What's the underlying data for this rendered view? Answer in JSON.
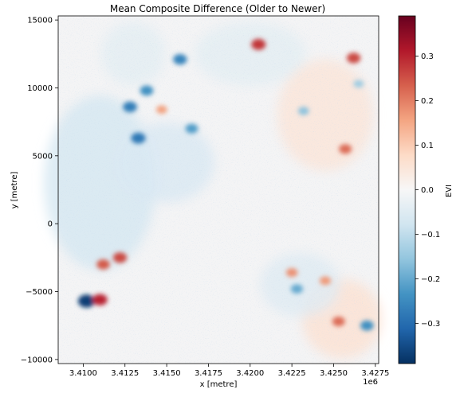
{
  "chart_data": {
    "type": "heatmap",
    "title": "Mean Composite Difference (Older to Newer)",
    "xlabel": "x [metre]",
    "ylabel": "y [metre]",
    "x_offset_label": "1e6",
    "xlim": [
      3.4085,
      3.4277
    ],
    "ylim": [
      -10300,
      15300
    ],
    "x_ticks": [
      "3.4100",
      "3.4125",
      "3.4150",
      "3.4175",
      "3.4200",
      "3.4225",
      "3.4250",
      "3.4275"
    ],
    "x_tick_values": [
      3.41,
      3.4125,
      3.415,
      3.4175,
      3.42,
      3.4225,
      3.425,
      3.4275
    ],
    "y_ticks": [
      "15000",
      "10000",
      "5000",
      "0",
      "−5000",
      "−10000"
    ],
    "y_tick_values": [
      15000,
      10000,
      5000,
      0,
      -5000,
      -10000
    ],
    "colorbar": {
      "label": "EVI",
      "range": [
        -0.39,
        0.39
      ],
      "colormap": "RdBu_r",
      "ticks": [
        "0.3",
        "0.2",
        "0.1",
        "0.0",
        "−0.1",
        "−0.2",
        "−0.3"
      ],
      "tick_values": [
        0.3,
        0.2,
        0.1,
        0.0,
        -0.1,
        -0.2,
        -0.3
      ],
      "colors": [
        "#053061",
        "#2166ac",
        "#4393c3",
        "#92c5de",
        "#d1e5f0",
        "#f7f7f7",
        "#fddbc7",
        "#f4a582",
        "#d6604d",
        "#b2182b",
        "#67001f"
      ]
    },
    "grid": false,
    "features": [
      {
        "x": 3.4128,
        "y": 8600,
        "value": -0.27
      },
      {
        "x": 3.4138,
        "y": 9800,
        "value": -0.24
      },
      {
        "x": 3.4133,
        "y": 6300,
        "value": -0.28
      },
      {
        "x": 3.4165,
        "y": 7000,
        "value": -0.22
      },
      {
        "x": 3.4158,
        "y": 12100,
        "value": -0.26
      },
      {
        "x": 3.4102,
        "y": -5700,
        "value": -0.37
      },
      {
        "x": 3.4112,
        "y": -3000,
        "value": 0.24
      },
      {
        "x": 3.4122,
        "y": -2500,
        "value": 0.26
      },
      {
        "x": 3.411,
        "y": -5600,
        "value": 0.3
      },
      {
        "x": 3.4205,
        "y": 13200,
        "value": 0.28
      },
      {
        "x": 3.4262,
        "y": 12200,
        "value": 0.26
      },
      {
        "x": 3.4257,
        "y": 5500,
        "value": 0.22
      },
      {
        "x": 3.4228,
        "y": -4800,
        "value": -0.2
      },
      {
        "x": 3.4253,
        "y": -7200,
        "value": 0.22
      },
      {
        "x": 3.427,
        "y": -7500,
        "value": -0.24
      },
      {
        "x": 3.4245,
        "y": -4200,
        "value": 0.17
      },
      {
        "x": 3.4147,
        "y": 8400,
        "value": 0.16
      },
      {
        "x": 3.4232,
        "y": 8300,
        "value": -0.16
      },
      {
        "x": 3.4265,
        "y": 10300,
        "value": -0.14
      },
      {
        "x": 3.4225,
        "y": -3600,
        "value": 0.18
      }
    ]
  }
}
